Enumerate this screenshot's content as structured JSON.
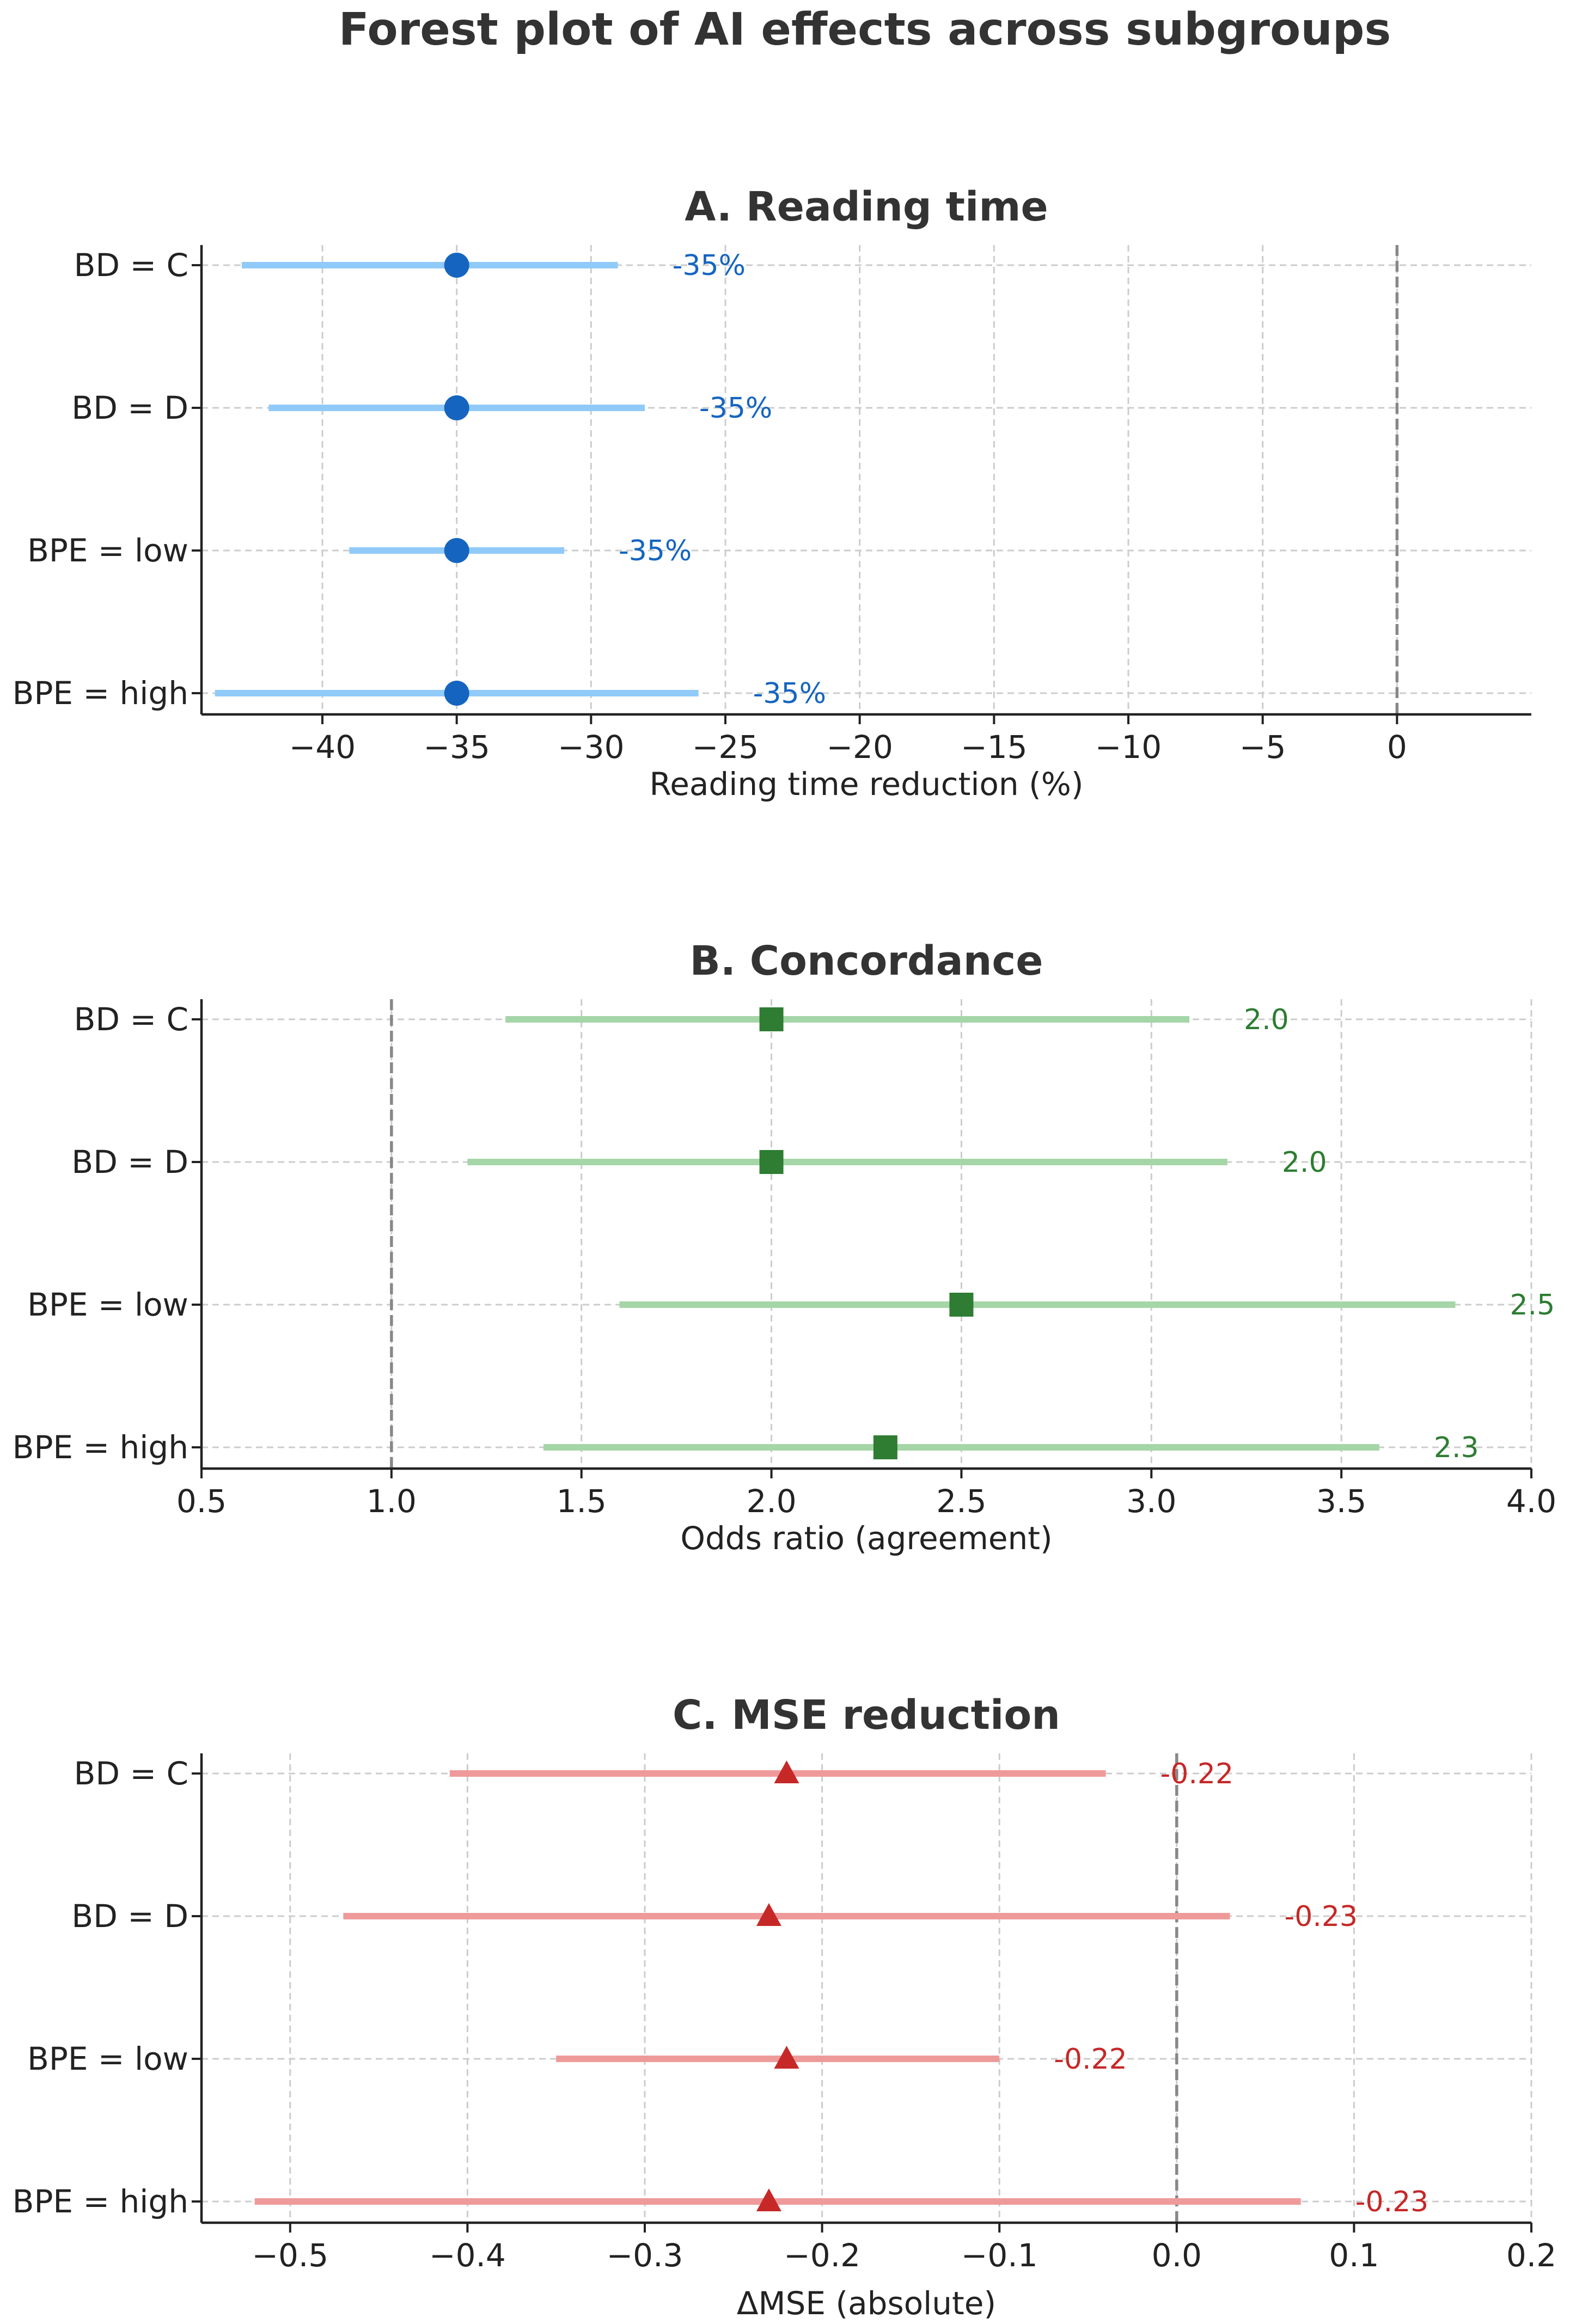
{
  "chart_data": {
    "title": "Forest plot of AI effects across subgroups",
    "panels": [
      {
        "type": "forest",
        "title": "A. Reading time",
        "xlabel": "Reading time reduction (%)",
        "xlim": [
          -44.5,
          5
        ],
        "xticks": [
          -40,
          -35,
          -30,
          -25,
          -20,
          -15,
          -10,
          -5,
          0
        ],
        "xtick_labels": [
          "−40",
          "−35",
          "−30",
          "−25",
          "−20",
          "−15",
          "−10",
          "−5",
          "0"
        ],
        "reference": 0,
        "marker": "circle",
        "point_color": "#1565c0",
        "ci_color": "#90caf9",
        "label_color": "#1565c0",
        "rows": [
          {
            "subgroup": "BD = C",
            "estimate": -35,
            "ci_low": -43,
            "ci_high": -29,
            "label": "-35%"
          },
          {
            "subgroup": "BD = D",
            "estimate": -35,
            "ci_low": -42,
            "ci_high": -28,
            "label": "-35%"
          },
          {
            "subgroup": "BPE = low",
            "estimate": -35,
            "ci_low": -39,
            "ci_high": -31,
            "label": "-35%"
          },
          {
            "subgroup": "BPE = high",
            "estimate": -35,
            "ci_low": -44,
            "ci_high": -26,
            "label": "-35%"
          }
        ]
      },
      {
        "type": "forest",
        "title": "B. Concordance",
        "xlabel": "Odds ratio (agreement)",
        "xlim": [
          0.5,
          4.0
        ],
        "xticks": [
          0.5,
          1.0,
          1.5,
          2.0,
          2.5,
          3.0,
          3.5,
          4.0
        ],
        "xtick_labels": [
          "0.5",
          "1.0",
          "1.5",
          "2.0",
          "2.5",
          "3.0",
          "3.5",
          "4.0"
        ],
        "reference": 1.0,
        "marker": "square",
        "point_color": "#2e7d32",
        "ci_color": "#a5d6a7",
        "label_color": "#2e7d32",
        "rows": [
          {
            "subgroup": "BD = C",
            "estimate": 2.0,
            "ci_low": 1.3,
            "ci_high": 3.1,
            "label": "2.0"
          },
          {
            "subgroup": "BD = D",
            "estimate": 2.0,
            "ci_low": 1.2,
            "ci_high": 3.2,
            "label": "2.0"
          },
          {
            "subgroup": "BPE = low",
            "estimate": 2.5,
            "ci_low": 1.6,
            "ci_high": 3.8,
            "label": "2.5"
          },
          {
            "subgroup": "BPE = high",
            "estimate": 2.3,
            "ci_low": 1.4,
            "ci_high": 3.6,
            "label": "2.3"
          }
        ]
      },
      {
        "type": "forest",
        "title": "C. MSE reduction",
        "xlabel": "ΔMSE (absolute)",
        "xlim": [
          -0.55,
          0.2
        ],
        "xticks": [
          -0.5,
          -0.4,
          -0.3,
          -0.2,
          -0.1,
          0.0,
          0.1,
          0.2
        ],
        "xtick_labels": [
          "−0.5",
          "−0.4",
          "−0.3",
          "−0.2",
          "−0.1",
          "0.0",
          "0.1",
          "0.2"
        ],
        "reference": 0.0,
        "marker": "triangle",
        "point_color": "#c62828",
        "ci_color": "#ef9a9a",
        "label_color": "#c62828",
        "rows": [
          {
            "subgroup": "BD = C",
            "estimate": -0.22,
            "ci_low": -0.41,
            "ci_high": -0.04,
            "label": "-0.22"
          },
          {
            "subgroup": "BD = D",
            "estimate": -0.23,
            "ci_low": -0.47,
            "ci_high": 0.03,
            "label": "-0.23"
          },
          {
            "subgroup": "BPE = low",
            "estimate": -0.22,
            "ci_low": -0.35,
            "ci_high": -0.1,
            "label": "-0.22"
          },
          {
            "subgroup": "BPE = high",
            "estimate": -0.23,
            "ci_low": -0.52,
            "ci_high": 0.07,
            "label": "-0.23"
          }
        ]
      }
    ]
  }
}
